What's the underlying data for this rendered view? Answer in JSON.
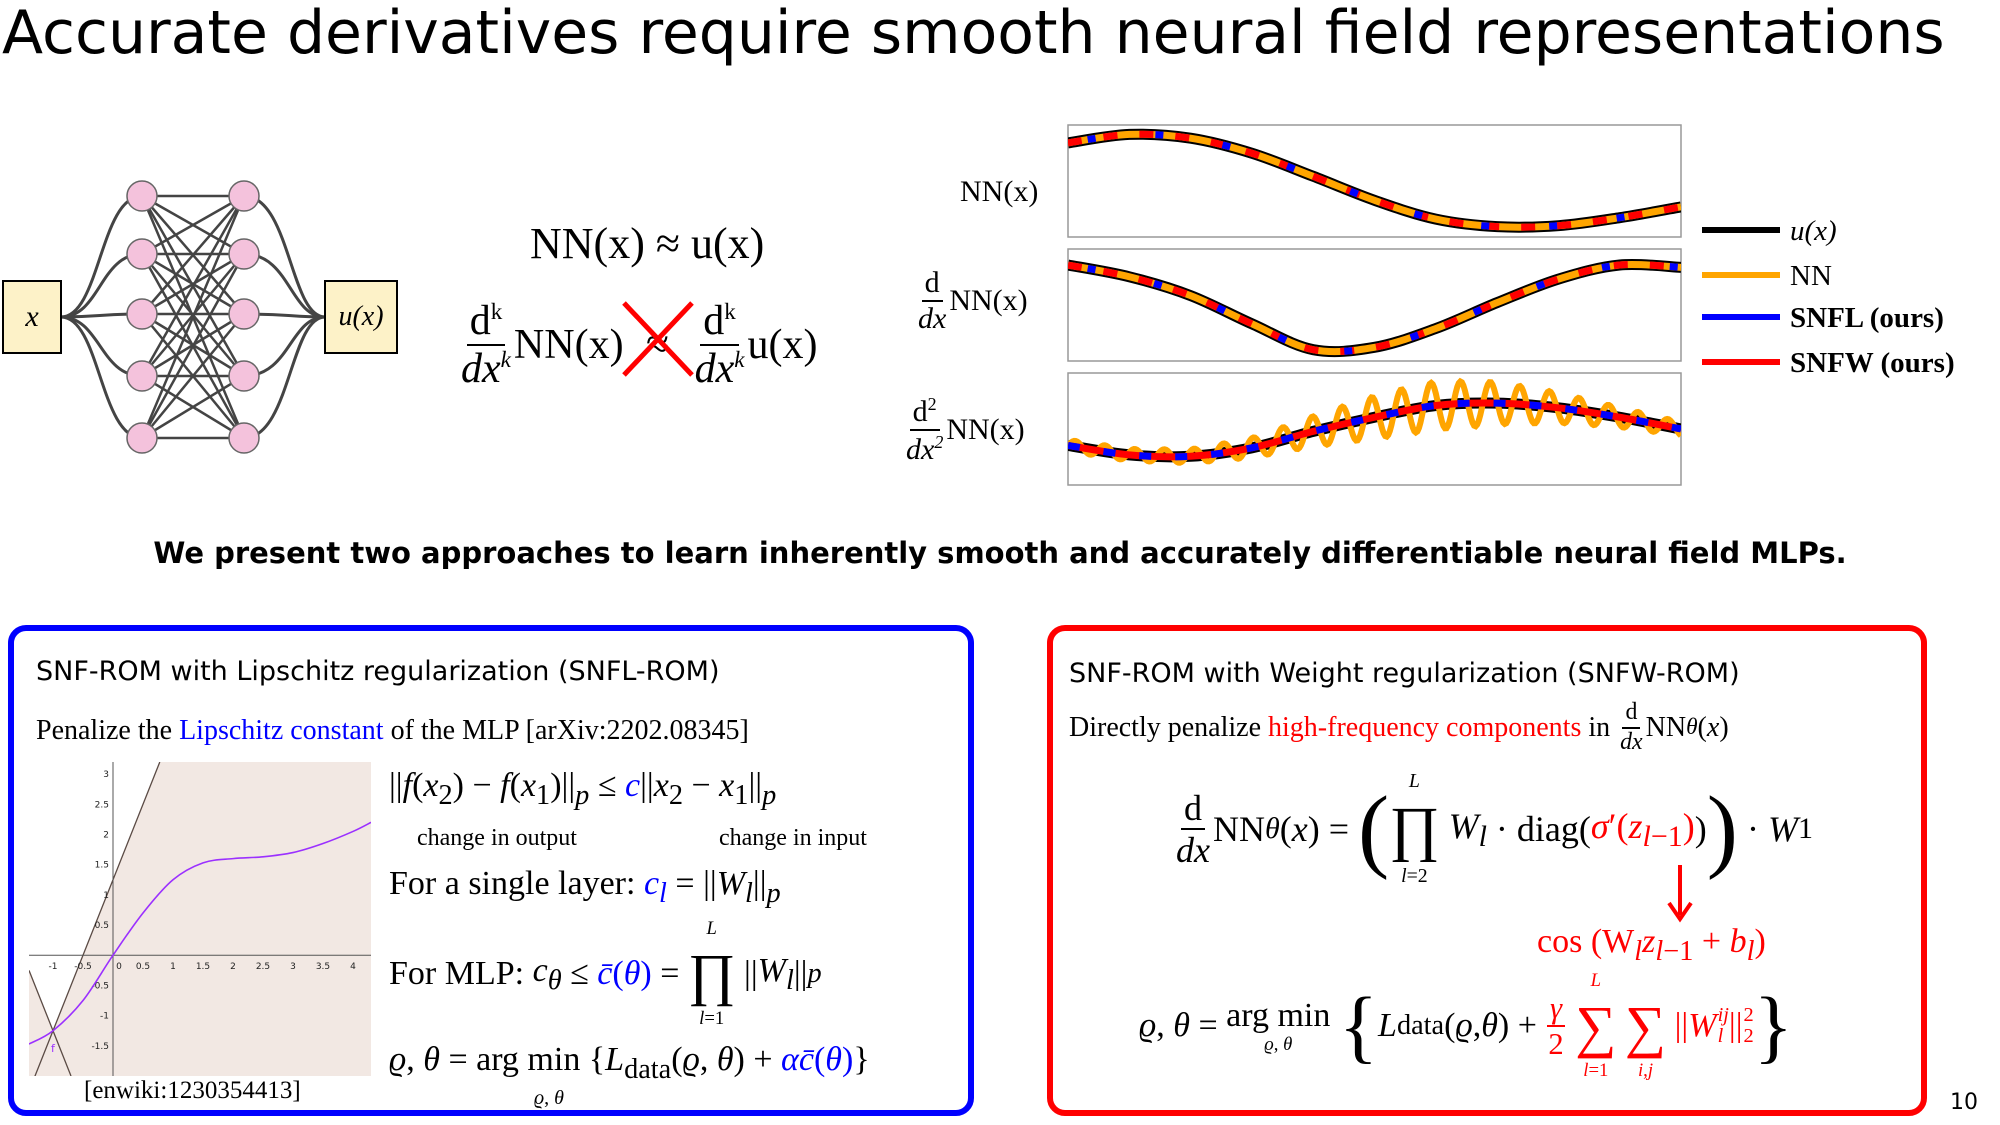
{
  "slide": {
    "title": "Accurate derivatives require smooth neural field representations",
    "subtitle": "We present two approaches to learn inherently smooth and accurately differentiable neural field MLPs.",
    "page_number": "10"
  },
  "network": {
    "input_label": "x",
    "output_label": "u(x)",
    "node_color": "#f4c2dc",
    "box_color": "#fdf2c8"
  },
  "equations": {
    "approx": "NN(x) ≈ u(x)",
    "deriv_left_num": "d",
    "deriv_left_sup": "k",
    "deriv_left_den": "dx",
    "deriv_left_fn": "NN(x)",
    "deriv_right_num": "d",
    "deriv_right_sup": "k",
    "deriv_right_den": "dx",
    "deriv_right_fn": "u(x)",
    "approx_symbol": "≈"
  },
  "chart_data": {
    "type": "line",
    "panels": [
      {
        "ylabel": "NN(x)",
        "u": [
          0.81,
          0.99,
          0.91,
          0.59,
          0.1,
          -0.41,
          -0.81,
          -0.97,
          -0.95,
          -0.78,
          -0.55
        ]
      },
      {
        "ylabel_num": "d",
        "ylabel_den": "dx",
        "ylabel": "NN(x)",
        "u": [
          0.85,
          0.6,
          0.2,
          -0.4,
          -0.95,
          -0.9,
          -0.5,
          0.05,
          0.55,
          0.85,
          0.8
        ]
      },
      {
        "ylabel_num": "d2",
        "ylabel_den": "dx2",
        "ylabel": "NN(x)",
        "u": [
          -0.35,
          -0.55,
          -0.58,
          -0.4,
          -0.05,
          0.25,
          0.5,
          0.55,
          0.45,
          0.25,
          0.0
        ],
        "nn_oscillates": true
      }
    ],
    "x": [
      0,
      0.1,
      0.2,
      0.3,
      0.4,
      0.5,
      0.6,
      0.7,
      0.8,
      0.9,
      1.0
    ],
    "grid": false,
    "legend_placement": "right",
    "series": [
      {
        "name": "u(x)",
        "color": "#000000"
      },
      {
        "name": "NN",
        "color": "#ffa500"
      },
      {
        "name": "SNFL (ours)",
        "color": "#0000ff"
      },
      {
        "name": "SNFW (ours)",
        "color": "#ff0000"
      }
    ]
  },
  "lipschitz_graph": {
    "xlim": [
      -1.4,
      4.3
    ],
    "ylim": [
      -2,
      3.2
    ],
    "xticks": [
      "-1",
      "-0.5",
      "0",
      "0.5",
      "1",
      "1.5",
      "2",
      "2.5",
      "3",
      "3.5",
      "4"
    ],
    "xtick_values": [
      -1,
      -0.5,
      0,
      0.5,
      1,
      1.5,
      2,
      2.5,
      3,
      3.5,
      4
    ],
    "yticks": [
      "3",
      "2.5",
      "2",
      "1.5",
      "1",
      "0.5",
      "-0.5",
      "-1",
      "-1.5"
    ],
    "ytick_values": [
      3,
      2.5,
      2,
      1.5,
      1,
      0.5,
      -0.5,
      -1,
      -1.5
    ],
    "curve_label": "f",
    "curve": [
      [
        -1.4,
        -1.47
      ],
      [
        -1,
        -1.25
      ],
      [
        -0.5,
        -0.75
      ],
      [
        0,
        0
      ],
      [
        0.5,
        0.7
      ],
      [
        1,
        1.25
      ],
      [
        1.5,
        1.53
      ],
      [
        2,
        1.6
      ],
      [
        2.5,
        1.63
      ],
      [
        3,
        1.7
      ],
      [
        3.5,
        1.85
      ],
      [
        4,
        2.05
      ],
      [
        4.3,
        2.2
      ]
    ],
    "cone_point": [
      -1,
      -1.25
    ],
    "cone_slope": 2.5,
    "source": "[enwiki:1230354413]",
    "curve_color": "#9b30ff",
    "bg_color": "#f2e8e3"
  },
  "snfl": {
    "heading": "SNF-ROM with Lipschitz regularization (SNFL-ROM)",
    "intro_pre": "Penalize the ",
    "intro_link": "Lipschitz constant",
    "intro_post": " of the MLP [arXiv:2202.08345]",
    "change_output": "change in output",
    "change_input": "change in input",
    "single_layer": "For a single layer: ",
    "mlp": "For MLP: ",
    "color": "#0000ff"
  },
  "snfw": {
    "heading": "SNF-ROM with Weight regularization (SNFW-ROM)",
    "intro_pre": "Directly penalize ",
    "intro_link": "high-frequency components",
    "intro_post": " in ",
    "cos_term": "cos (W",
    "color": "#ff0000"
  }
}
